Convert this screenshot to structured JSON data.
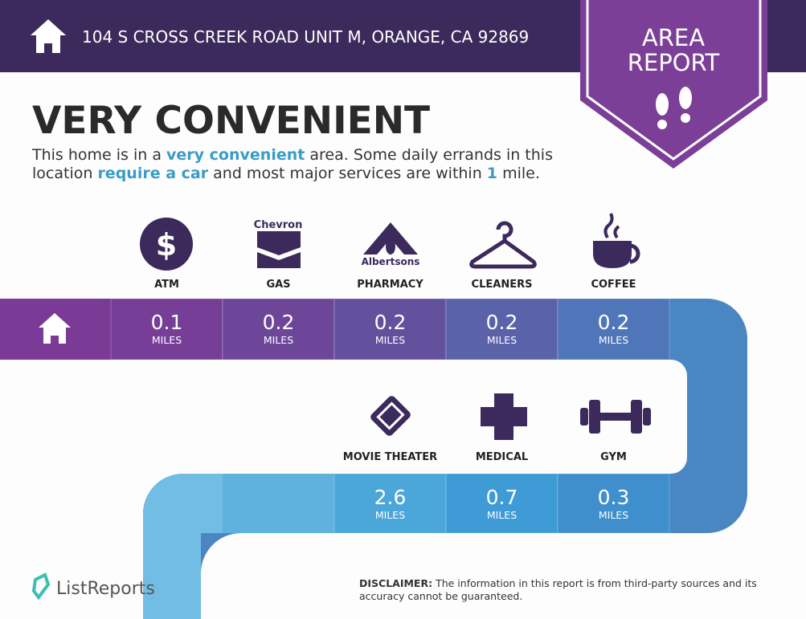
{
  "header": {
    "address": "104 S CROSS CREEK ROAD UNIT M, ORANGE, CA 92869"
  },
  "badge": {
    "lines": [
      "AREA",
      "REPORT"
    ]
  },
  "headline": "VERY CONVENIENT",
  "description": [
    {
      "text": "This home is in a ",
      "highlight": false
    },
    {
      "text": "very convenient",
      "highlight": true
    },
    {
      "text": " area. Some daily errands in this location ",
      "highlight": false
    },
    {
      "text": "require a car",
      "highlight": true
    },
    {
      "text": " and most major services are within ",
      "highlight": false
    },
    {
      "text": "1",
      "highlight": true
    },
    {
      "text": " mile.",
      "highlight": false
    }
  ],
  "logos": {
    "gas": "Chevron",
    "pharmacy": "Albertsons"
  },
  "row1": [
    {
      "label": "ATM",
      "distance": 0.1,
      "unit": "MILES"
    },
    {
      "label": "GAS",
      "distance": 0.2,
      "unit": "MILES"
    },
    {
      "label": "PHARMACY",
      "distance": 0.2,
      "unit": "MILES"
    },
    {
      "label": "CLEANERS",
      "distance": 0.2,
      "unit": "MILES"
    },
    {
      "label": "COFFEE",
      "distance": 0.2,
      "unit": "MILES"
    }
  ],
  "row2": [
    {
      "label": "MOVIE THEATER",
      "distance": 2.6,
      "unit": "MILES"
    },
    {
      "label": "MEDICAL",
      "distance": 0.7,
      "unit": "MILES"
    },
    {
      "label": "GYM",
      "distance": 0.3,
      "unit": "MILES"
    }
  ],
  "footer": {
    "brand": "ListReports",
    "disclaimer_label": "DISCLAIMER:",
    "disclaimer": " The information in this report is from third-party sources and its accuracy cannot be guaranteed."
  }
}
